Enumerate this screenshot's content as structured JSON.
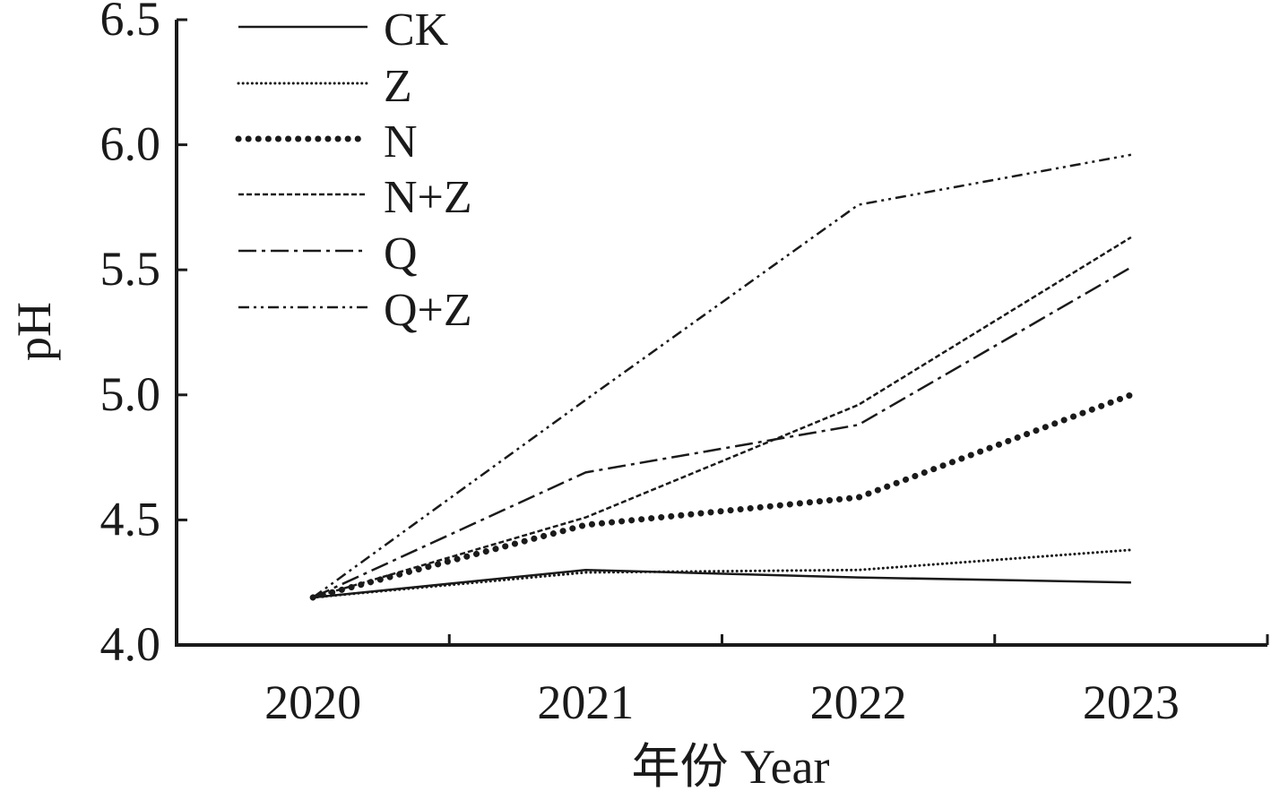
{
  "chart_data": {
    "type": "line",
    "title": "",
    "xlabel": "年份 Year",
    "ylabel": "pH",
    "categories": [
      "2020",
      "2021",
      "2022",
      "2023"
    ],
    "ylim": [
      4.0,
      6.5
    ],
    "yticks": [
      "4.0",
      "4.5",
      "5.0",
      "5.5",
      "6.0",
      "6.5"
    ],
    "grid": false,
    "legend_position": "top-left",
    "series": [
      {
        "name": "CK",
        "style": "solid",
        "values": [
          4.19,
          4.3,
          4.27,
          4.25
        ]
      },
      {
        "name": "Z",
        "style": "dotted-fine",
        "values": [
          4.19,
          4.29,
          4.3,
          4.38
        ]
      },
      {
        "name": "N",
        "style": "dotted-bold",
        "values": [
          4.19,
          4.48,
          4.59,
          5.0
        ]
      },
      {
        "name": "N+Z",
        "style": "dashed-short",
        "values": [
          4.19,
          4.51,
          4.96,
          5.63
        ]
      },
      {
        "name": "Q",
        "style": "dash-dot",
        "values": [
          4.19,
          4.69,
          4.88,
          5.51
        ]
      },
      {
        "name": "Q+Z",
        "style": "dash-dot-dot",
        "values": [
          4.19,
          4.98,
          5.76,
          5.96
        ]
      }
    ],
    "color": "#1a1a1a"
  }
}
